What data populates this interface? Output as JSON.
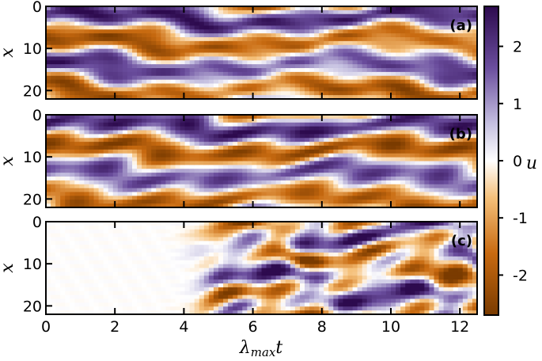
{
  "chart_data": {
    "type": "heatmap",
    "description_free": true,
    "xlabel": "λ_max t",
    "xlabel_main": "λ",
    "xlabel_sub": "max",
    "xlabel_tail": "t",
    "xlim": [
      0,
      12.5
    ],
    "xticks": [
      "0",
      "2",
      "4",
      "6",
      "8",
      "10",
      "12"
    ],
    "xtick_values": [
      0,
      2,
      4,
      6,
      8,
      10,
      12
    ],
    "ylabel": "x",
    "ylim": [
      0,
      22
    ],
    "yticks": [
      "0",
      "10",
      "20"
    ],
    "ytick_values": [
      0,
      10,
      20
    ],
    "colorbar": {
      "label": "u",
      "ticks": [
        "2",
        "1",
        "0",
        "-1",
        "-2"
      ],
      "tick_values": [
        2,
        1,
        0,
        -1,
        -2
      ],
      "range": [
        -2.7,
        2.7
      ],
      "colors": {
        "low": "#7a3b00",
        "mid": "#ffffff",
        "high": "#2d0a4e"
      }
    },
    "panels": [
      {
        "tag": "(a)",
        "pattern": "chaotic stripes"
      },
      {
        "tag": "(b)",
        "pattern": "chaotic stripes"
      },
      {
        "tag": "(c)",
        "pattern": "near zero until t≈4.5, then large amplitude"
      }
    ]
  }
}
